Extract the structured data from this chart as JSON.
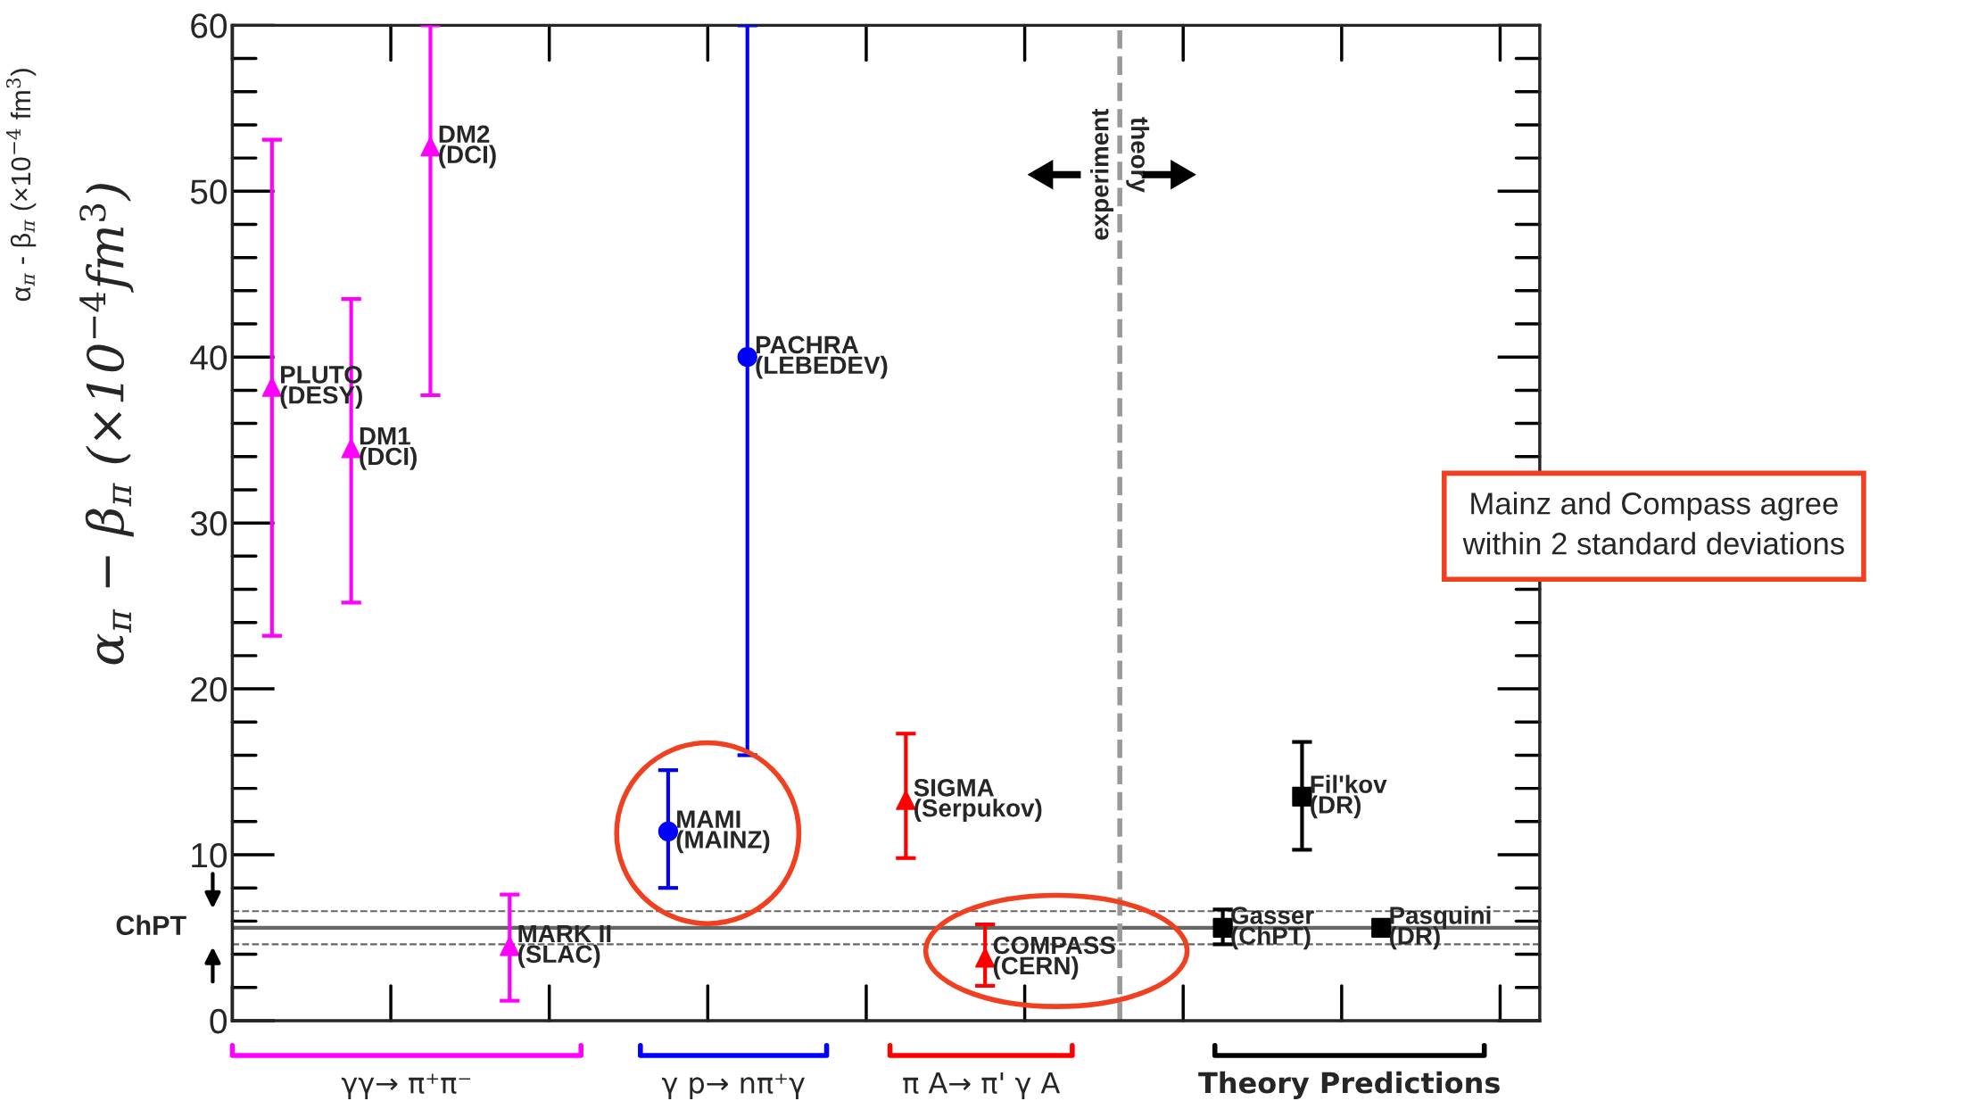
{
  "chart_data": {
    "type": "scatter",
    "ylabel": "α$_{π}$ - β$_{π}$ (×10$^{−4}$ fm$^{3}$)",
    "categories": [
      null,
      null,
      null,
      null,
      null,
      null,
      null,
      null,
      null,
      null,
      null,
      null,
      null,
      null,
      null,
      null
    ],
    "ylim": [
      0,
      60
    ],
    "yticks": [
      0,
      10,
      20,
      30,
      40,
      50,
      60
    ],
    "tick_labels": "y",
    "grid": false,
    "legend": false,
    "series": [
      {
        "color": "#ff00ff",
        "marker": "triangle",
        "values": [
          38.2,
          34.5,
          52.7,
          4.5,
          null,
          null,
          null,
          null,
          null,
          null,
          null,
          null,
          null,
          null,
          null,
          null
        ],
        "errors": [
          [
            23.2,
            53.1
          ],
          [
            25.2,
            43.5
          ],
          [
            37.7,
            60
          ],
          [
            1.2,
            7.6
          ],
          null,
          null,
          null,
          null,
          null,
          null,
          null,
          null,
          null,
          null,
          null,
          null
        ]
      },
      {
        "color": "#0000ff",
        "marker": "circle",
        "values": [
          null,
          null,
          null,
          null,
          null,
          11.4,
          40,
          null,
          null,
          null,
          null,
          null,
          null,
          null,
          null,
          null
        ],
        "errors": [
          null,
          null,
          null,
          null,
          null,
          [
            8.0,
            15.1
          ],
          [
            16.0,
            60
          ],
          null,
          null,
          null,
          null,
          null,
          null,
          null,
          null,
          null
        ]
      },
      {
        "color": "#ff0000",
        "marker": "triangle",
        "values": [
          null,
          null,
          null,
          null,
          null,
          null,
          null,
          null,
          13.3,
          3.8,
          null,
          null,
          null,
          null,
          null,
          null
        ],
        "errors": [
          null,
          null,
          null,
          null,
          null,
          null,
          null,
          null,
          [
            9.8,
            17.3
          ],
          [
            2.1,
            5.8
          ],
          null,
          null,
          null,
          null,
          null,
          null
        ]
      },
      {
        "color": "#000000",
        "marker": "square",
        "values": [
          null,
          null,
          null,
          null,
          null,
          null,
          null,
          null,
          null,
          null,
          null,
          null,
          5.6,
          13.5,
          5.6,
          null
        ],
        "errors": [
          null,
          null,
          null,
          null,
          null,
          null,
          null,
          null,
          null,
          null,
          null,
          null,
          [
            4.6,
            6.7
          ],
          [
            10.3,
            16.8
          ],
          null,
          null
        ]
      }
    ],
    "ref_lines": [
      {
        "axis": "y",
        "value": 5.6,
        "label": "ChPT",
        "color": "#666666",
        "line_style": "solid"
      },
      {
        "axis": "y",
        "value": 6.6,
        "color": "#666666",
        "line_style": "dashed"
      },
      {
        "axis": "y",
        "value": 4.6,
        "color": "#666666",
        "line_style": "dashed"
      }
    ],
    "annotations": [
      "PLUTO\n(DESY)",
      "DM1\n(DCI)",
      "DM2\n(DCI)",
      "MARK II\n(SLAC)",
      "MAMI\n(MAINZ)",
      "PACHRA\n(LEBEDEV)",
      "SIGMA\n(Serpukov)",
      "COMPASS\n(CERN)",
      "Gasser\n(ChPT)",
      "Fil'kov\n(DR)",
      "Pasquini\n(DR)",
      "γγ→ π⁺π⁻",
      "γ p→ nπ⁺γ",
      "π A→ π' γ A",
      "Theory Predictions",
      "experiment",
      "theory",
      "Mainz and Compass agree\nwithin 2 standard deviations",
      "α$_{π}$ − β$_{π}$ (×10$^{−4}$fm$^{3}$)"
    ]
  }
}
